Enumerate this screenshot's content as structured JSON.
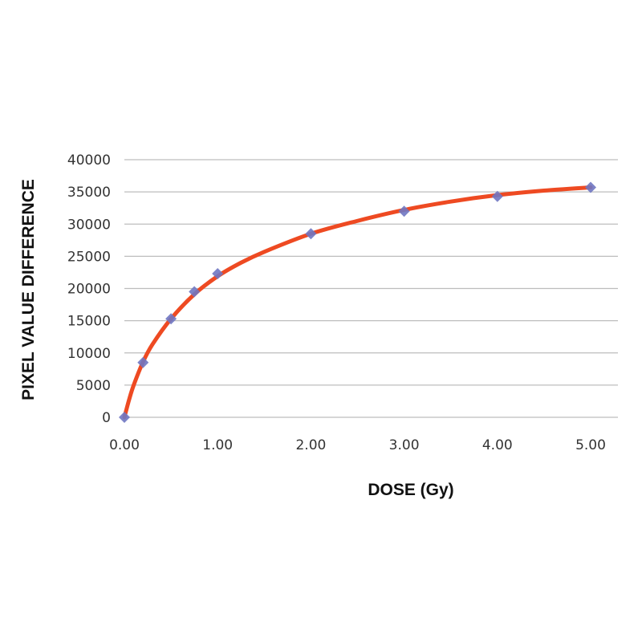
{
  "chart_data": {
    "type": "scatter",
    "title": "",
    "xlabel": "DOSE (Gy)",
    "ylabel": "PIXEL VALUE DIFFERENCE",
    "xlim": [
      0,
      5.3
    ],
    "ylim": [
      0,
      40000
    ],
    "x_ticks": [
      0,
      1,
      2,
      3,
      4,
      5
    ],
    "x_tick_labels": [
      "0.00",
      "1.00",
      "2.00",
      "3.00",
      "4.00",
      "5.00"
    ],
    "y_ticks": [
      0,
      5000,
      10000,
      15000,
      20000,
      25000,
      30000,
      35000,
      40000
    ],
    "y_tick_labels": [
      "0",
      "5000",
      "10000",
      "15000",
      "20000",
      "25000",
      "30000",
      "35000",
      "40000"
    ],
    "grid": true,
    "legend": "none",
    "series": [
      {
        "kind": "points",
        "marker": "diamond",
        "color": "#6f77c2",
        "x": [
          0,
          0.2,
          0.5,
          0.75,
          1.0,
          2.0,
          3.0,
          4.0,
          5.0
        ],
        "y": [
          0,
          8500,
          15300,
          19500,
          22300,
          28500,
          32000,
          34300,
          35700
        ]
      },
      {
        "kind": "fit-curve",
        "color": "#ee4a22",
        "x": [
          0,
          0.05,
          0.1,
          0.2,
          0.3,
          0.5,
          0.75,
          1.0,
          1.25,
          1.5,
          2.0,
          2.5,
          3.0,
          3.5,
          4.0,
          4.5,
          5.0
        ],
        "y": [
          0,
          2700,
          5000,
          8600,
          11300,
          15300,
          19100,
          21900,
          24000,
          25700,
          28500,
          30500,
          32200,
          33500,
          34500,
          35200,
          35700
        ]
      }
    ]
  }
}
